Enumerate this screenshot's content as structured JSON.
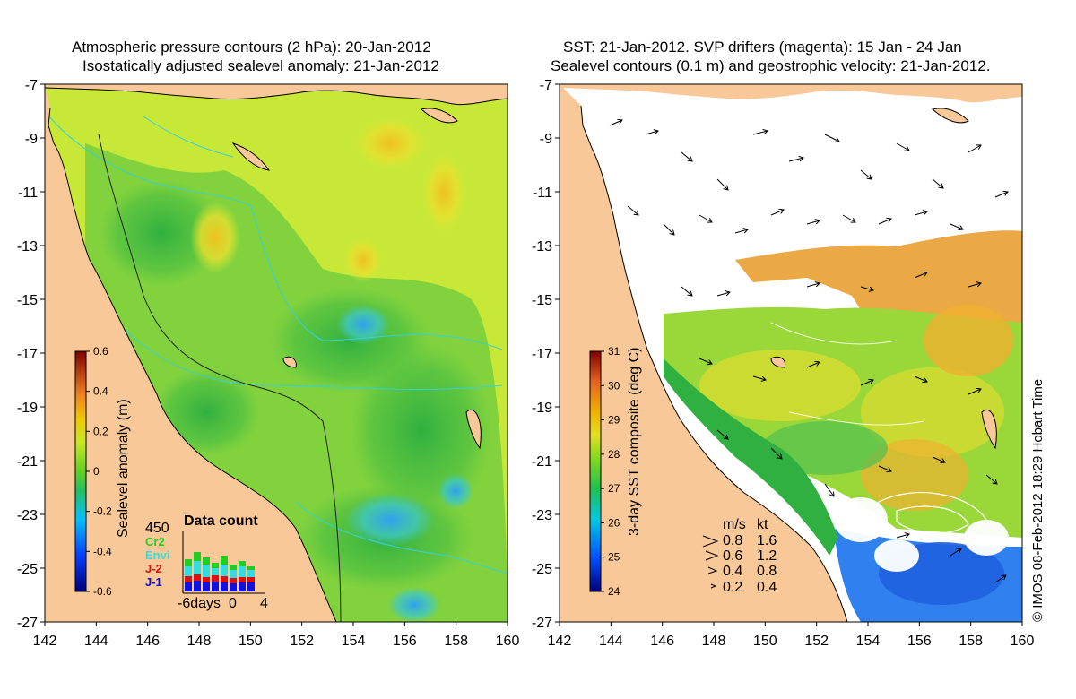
{
  "left_panel": {
    "title_line1": "Atmospheric pressure contours (2 hPa): 20-Jan-2012",
    "title_line2": "Isostatically adjusted sealevel anomaly: 21-Jan-2012",
    "colorbar": {
      "label": "Sealevel anomaly (m)",
      "ticks": [
        "0.6",
        "0.4",
        "0.2",
        "0",
        "-0.2",
        "-0.4",
        "-0.6"
      ]
    },
    "data_count": {
      "title": "Data count",
      "max_label": "450",
      "satellites": [
        {
          "name": "Cr2",
          "color": "#22cc22"
        },
        {
          "name": "Envi",
          "color": "#33dddd"
        },
        {
          "name": "J-2",
          "color": "#dd1111"
        },
        {
          "name": "J-1",
          "color": "#1111dd"
        }
      ],
      "x_ticks": [
        "-6days",
        "0",
        "4"
      ]
    }
  },
  "right_panel": {
    "title_line1": "SST: 21-Jan-2012. SVP drifters (magenta): 15 Jan - 24 Jan",
    "title_line2": "Sealevel contours (0.1 m) and geostrophic velocity: 21-Jan-2012.",
    "colorbar": {
      "label": "3-day SST composite (deg C)",
      "ticks": [
        "31",
        "30",
        "29",
        "28",
        "27",
        "26",
        "25",
        "24"
      ]
    },
    "velocity_legend": {
      "header_ms": "m/s",
      "header_kt": "kt",
      "rows": [
        {
          "ms": "0.8",
          "kt": "1.6"
        },
        {
          "ms": "0.6",
          "kt": "1.2"
        },
        {
          "ms": "0.4",
          "kt": "0.8"
        },
        {
          "ms": "0.2",
          "kt": "0.4"
        }
      ]
    }
  },
  "axes": {
    "lat_ticks": [
      "-7",
      "-9",
      "-11",
      "-13",
      "-15",
      "-17",
      "-19",
      "-21",
      "-23",
      "-25",
      "-27"
    ],
    "lon_ticks": [
      "142",
      "144",
      "146",
      "148",
      "150",
      "152",
      "154",
      "156",
      "158",
      "160"
    ]
  },
  "credit": "© IMOS 08-Feb-2012 18:29 Hobart Time",
  "colors": {
    "land": "#f8c898",
    "ocean_no_data": "#ffffff"
  }
}
